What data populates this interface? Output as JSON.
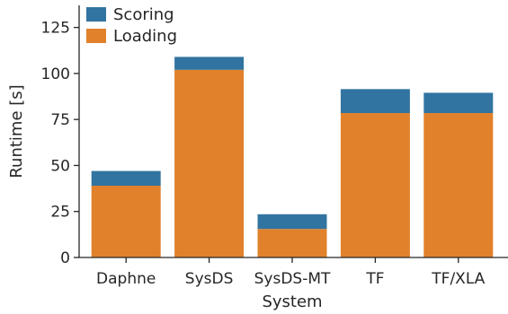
{
  "chart_data": {
    "type": "bar",
    "stacked": true,
    "categories": [
      "Daphne",
      "SysDS",
      "SysDS-MT",
      "TF",
      "TF/XLA"
    ],
    "series": [
      {
        "name": "Loading",
        "color": "#e1812c",
        "values": [
          39,
          102,
          15.5,
          78.5,
          78.5
        ]
      },
      {
        "name": "Scoring",
        "color": "#3274a1",
        "values": [
          8,
          7,
          8,
          13,
          11
        ]
      }
    ],
    "xlabel": "System",
    "ylabel": "Runtime [s]",
    "ylim": [
      0,
      137
    ],
    "yticks": [
      0,
      25,
      50,
      75,
      100,
      125
    ],
    "grid": false,
    "legend": {
      "position": "top-left",
      "order": [
        "Scoring",
        "Loading"
      ]
    }
  }
}
